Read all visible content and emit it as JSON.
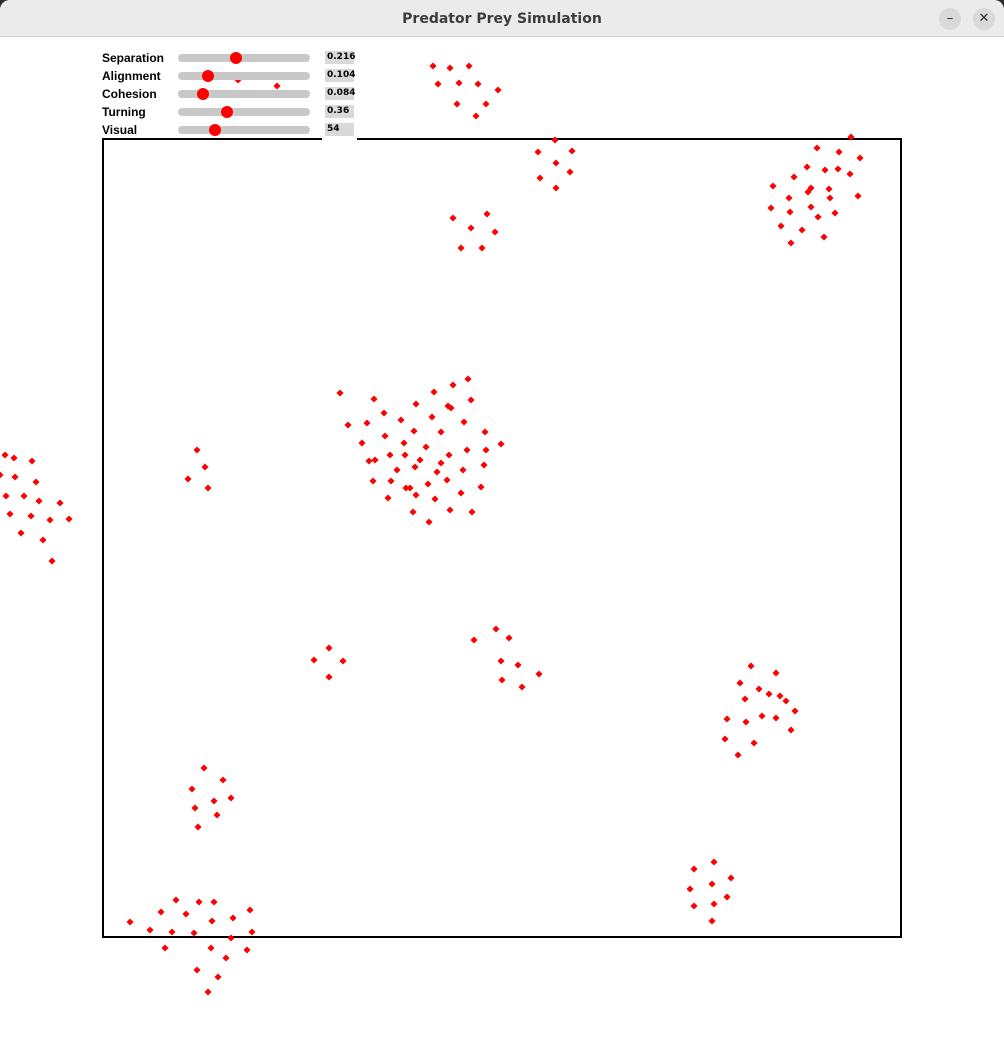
{
  "window": {
    "title": "Predator Prey Simulation",
    "minimize_glyph": "–",
    "close_glyph": "✕"
  },
  "controls": [
    {
      "label": "Separation",
      "value": "0.216",
      "fraction": 0.44
    },
    {
      "label": "Alignment",
      "value": "0.104",
      "fraction": 0.23
    },
    {
      "label": "Cohesion",
      "value": "0.084",
      "fraction": 0.19
    },
    {
      "label": "Turning",
      "value": "0.36",
      "fraction": 0.37
    },
    {
      "label": "Visual",
      "value": "54",
      "fraction": 0.28
    }
  ],
  "colors": {
    "boid": "#ff0000",
    "slider_track": "#c8c8c8",
    "value_box": "#d9d9d9",
    "frame": "#000000"
  },
  "icons": {
    "minimize": "minimize-icon",
    "close": "close-icon"
  }
}
